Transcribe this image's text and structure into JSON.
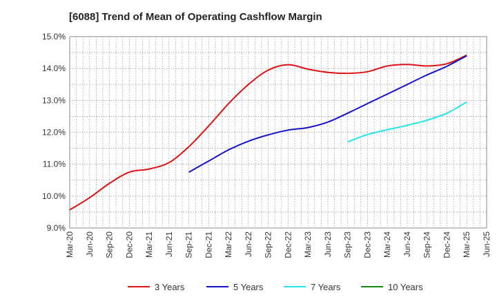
{
  "chart_data": {
    "type": "line",
    "title": "[6088]  Trend of Mean of Operating Cashflow Margin",
    "xlabel": "",
    "ylabel": "",
    "ylim": [
      9.0,
      15.0
    ],
    "y_ticks": [
      "9.0%",
      "10.0%",
      "11.0%",
      "12.0%",
      "13.0%",
      "14.0%",
      "15.0%"
    ],
    "x_ticks": [
      "Mar-20",
      "Jun-20",
      "Sep-20",
      "Dec-20",
      "Mar-21",
      "Jun-21",
      "Sep-21",
      "Dec-21",
      "Mar-22",
      "Jun-22",
      "Sep-22",
      "Dec-22",
      "Mar-23",
      "Jun-23",
      "Sep-23",
      "Dec-23",
      "Mar-24",
      "Jun-24",
      "Sep-24",
      "Dec-24",
      "Mar-25",
      "Jun-25"
    ],
    "grid": true,
    "legend_position": "bottom",
    "series": [
      {
        "name": "3 Years",
        "color": "#dd1111",
        "x": [
          "Mar-20",
          "Jun-20",
          "Sep-20",
          "Dec-20",
          "Mar-21",
          "Jun-21",
          "Sep-21",
          "Dec-21",
          "Mar-22",
          "Jun-22",
          "Sep-22",
          "Dec-22",
          "Mar-23",
          "Jun-23",
          "Sep-23",
          "Dec-23",
          "Mar-24",
          "Jun-24",
          "Sep-24",
          "Dec-24",
          "Mar-25"
        ],
        "values": [
          9.57,
          9.95,
          10.4,
          10.75,
          10.85,
          11.05,
          11.55,
          12.2,
          12.9,
          13.5,
          13.95,
          14.12,
          13.98,
          13.88,
          13.85,
          13.9,
          14.08,
          14.13,
          14.08,
          14.15,
          14.42
        ]
      },
      {
        "name": "5 Years",
        "color": "#1111cc",
        "x": [
          "Sep-21",
          "Dec-21",
          "Mar-22",
          "Jun-22",
          "Sep-22",
          "Dec-22",
          "Mar-23",
          "Jun-23",
          "Sep-23",
          "Dec-23",
          "Mar-24",
          "Jun-24",
          "Sep-24",
          "Dec-24",
          "Mar-25"
        ],
        "values": [
          10.75,
          11.1,
          11.45,
          11.72,
          11.92,
          12.07,
          12.15,
          12.32,
          12.6,
          12.9,
          13.2,
          13.5,
          13.8,
          14.07,
          14.4
        ]
      },
      {
        "name": "7 Years",
        "color": "#22e5e5",
        "x": [
          "Sep-23",
          "Dec-23",
          "Mar-24",
          "Jun-24",
          "Sep-24",
          "Dec-24",
          "Mar-25"
        ],
        "values": [
          11.7,
          11.93,
          12.08,
          12.22,
          12.38,
          12.6,
          12.95
        ]
      },
      {
        "name": "10 Years",
        "color": "#118811",
        "x": [],
        "values": []
      }
    ]
  }
}
